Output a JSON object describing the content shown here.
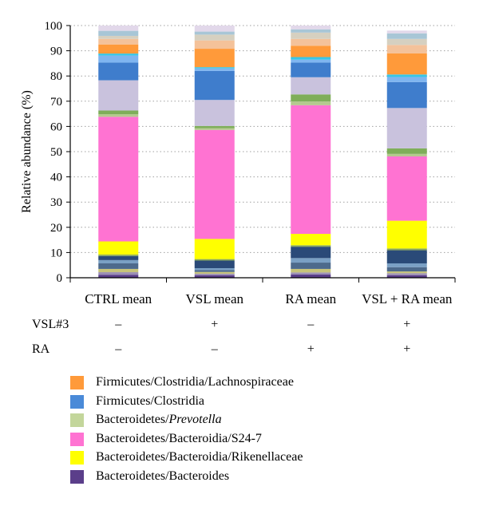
{
  "chart_data": {
    "type": "bar",
    "stacked": true,
    "ylabel": "Relative abundance (%)",
    "ylim": [
      0,
      100
    ],
    "yticks": [
      0,
      10,
      20,
      30,
      40,
      50,
      60,
      70,
      80,
      90,
      100
    ],
    "grid": "dotted horizontal",
    "categories": [
      "CTRL mean",
      "VSL mean",
      "RA mean",
      "VSL + RA mean"
    ],
    "treatments": [
      {
        "label": "VSL#3",
        "values": [
          "–",
          "+",
          "–",
          "+"
        ]
      },
      {
        "label": "RA",
        "values": [
          "–",
          "–",
          "+",
          "+"
        ]
      }
    ],
    "segment_colors": [
      "#5b3e8a",
      "#9b8fb5",
      "#c7c47a",
      "#4d6a8c",
      "#7aa0c4",
      "#2a4a78",
      "#8aa85a",
      "#ffff00",
      "#ff73d2",
      "#b5c98f",
      "#7fae5a",
      "#c9c2dd",
      "#3f7dcc",
      "#7fb5f0",
      "#39c6e6",
      "#ff9a3a",
      "#f4c29a",
      "#d6d0c0",
      "#a8c6d6",
      "#e2d8ea"
    ],
    "segments": [
      [
        1.2,
        1.0,
        1.3,
        1.0
      ],
      [
        1.0,
        0.6,
        0.8,
        0.8
      ],
      [
        1.3,
        0.7,
        1.4,
        0.7
      ],
      [
        2.2,
        0.7,
        2.5,
        1.7
      ],
      [
        1.3,
        0.8,
        1.8,
        1.5
      ],
      [
        1.6,
        3.0,
        4.5,
        5.2
      ],
      [
        0.6,
        0.6,
        0.6,
        0.7
      ],
      [
        5.2,
        8.0,
        4.5,
        11.0
      ],
      [
        49.4,
        43.2,
        51.0,
        25.5
      ],
      [
        1.0,
        0.7,
        1.5,
        1.0
      ],
      [
        1.5,
        0.9,
        2.8,
        2.2
      ],
      [
        12.0,
        10.3,
        6.8,
        16.0
      ],
      [
        7.0,
        11.5,
        5.8,
        10.3
      ],
      [
        2.8,
        1.0,
        1.2,
        2.0
      ],
      [
        0.8,
        0.5,
        1.0,
        1.0
      ],
      [
        3.6,
        7.3,
        4.5,
        8.4
      ],
      [
        2.2,
        3.3,
        2.7,
        3.3
      ],
      [
        1.2,
        2.3,
        2.5,
        2.4
      ],
      [
        2.0,
        1.2,
        1.3,
        2.2
      ],
      [
        2.1,
        2.4,
        1.5,
        1.1
      ]
    ],
    "legend": [
      {
        "label": "Firmicutes/Clostridia/Lachnospiraceae",
        "color": "#ff9a3a"
      },
      {
        "label": "Firmicutes/Clostridia",
        "color": "#4a8ad8"
      },
      {
        "label_prefix": "Bacteroidetes/",
        "label_italic": "Prevotella",
        "color": "#c3d69b"
      },
      {
        "label": "Bacteroidetes/Bacteroidia/S24-7",
        "color": "#ff73d2"
      },
      {
        "label": "Bacteroidetes/Bacteroidia/Rikenellaceae",
        "color": "#ffff00"
      },
      {
        "label": "Bacteroidetes/Bacteroides",
        "color": "#5b3e8a"
      }
    ]
  }
}
